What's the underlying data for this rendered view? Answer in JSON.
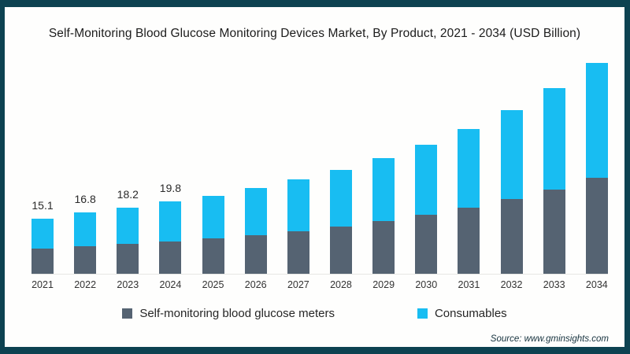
{
  "title": "Self-Monitoring Blood Glucose Monitoring Devices Market, By Product, 2021 - 2034 (USD Billion)",
  "source": "Source: www.gminsights.com",
  "colors": {
    "frame_border": "#0d4251",
    "meters": "#556372",
    "consumables": "#18bdf2",
    "axis_line": "#e7e7e4"
  },
  "legend": {
    "items": [
      {
        "label": "Self-monitoring blood glucose meters",
        "color": "#556372"
      },
      {
        "label": "Consumables",
        "color": "#18bdf2"
      }
    ]
  },
  "chart_data": {
    "type": "bar",
    "stacked": true,
    "title": "Self-Monitoring Blood Glucose Monitoring Devices Market, By Product, 2021 - 2034 (USD Billion)",
    "value_unit": "USD Billion",
    "categories": [
      "2021",
      "2022",
      "2023",
      "2024",
      "2025",
      "2026",
      "2027",
      "2028",
      "2029",
      "2030",
      "2031",
      "2032",
      "2033",
      "2034"
    ],
    "series": [
      {
        "name": "Self-monitoring blood glucose meters",
        "color": "#556372",
        "values": [
          6.8,
          7.5,
          8.2,
          8.8,
          9.7,
          10.6,
          11.7,
          12.9,
          14.4,
          16.2,
          18.1,
          20.5,
          23.1,
          26.4
        ]
      },
      {
        "name": "Consumables",
        "color": "#18bdf2",
        "values": [
          8.3,
          9.3,
          10.0,
          11.0,
          11.7,
          12.9,
          14.2,
          15.6,
          17.2,
          19.1,
          21.5,
          24.3,
          27.7,
          31.3
        ]
      }
    ],
    "totals": [
      15.1,
      16.8,
      18.2,
      19.8,
      21.4,
      23.5,
      25.9,
      28.5,
      31.6,
      35.3,
      39.6,
      44.8,
      50.8,
      57.7
    ],
    "total_labels": [
      "15.1",
      "16.8",
      "18.2",
      "19.8",
      "",
      "",
      "",
      "",
      "",
      "",
      "",
      "",
      "",
      ""
    ],
    "xlabel": "",
    "ylabel": "",
    "ylim": [
      0,
      60
    ],
    "grid": false,
    "legend_position": "bottom"
  }
}
